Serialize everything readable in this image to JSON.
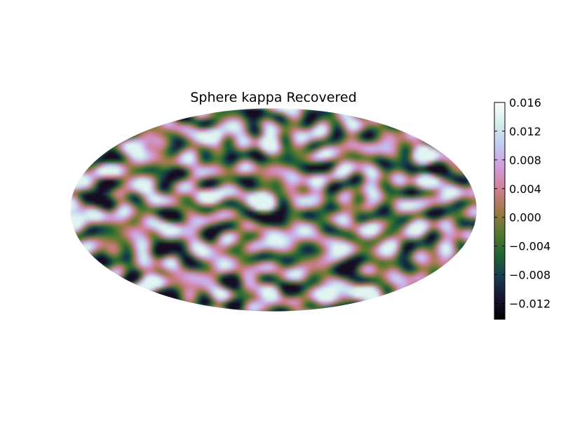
{
  "chart_data": {
    "type": "heatmap",
    "projection": "mollweide",
    "title": "Sphere kappa Recovered",
    "colormap": "cubehelix",
    "colorbar": {
      "orientation": "vertical",
      "placement": "right",
      "vmin": -0.0142,
      "vmax": 0.016,
      "ticks": [
        {
          "value": 0.016,
          "label": "0.016"
        },
        {
          "value": 0.012,
          "label": "0.012"
        },
        {
          "value": 0.008,
          "label": "0.008"
        },
        {
          "value": 0.004,
          "label": "0.004"
        },
        {
          "value": 0.0,
          "label": "0.000"
        },
        {
          "value": -0.004,
          "label": "−0.004"
        },
        {
          "value": -0.008,
          "label": "−0.008"
        },
        {
          "value": -0.012,
          "label": "−0.012"
        }
      ]
    },
    "field_summary": {
      "description_kind": "random Gaussian field over full sky",
      "typical_value_range": [
        -0.012,
        0.014
      ]
    }
  },
  "colors": {
    "cubehelix_stops": [
      "#000000",
      "#1a1530",
      "#163d4e",
      "#1f6631",
      "#54792f",
      "#a07949",
      "#d07e93",
      "#d09cd9",
      "#c1caf3",
      "#d2eeea",
      "#ffffff"
    ]
  }
}
